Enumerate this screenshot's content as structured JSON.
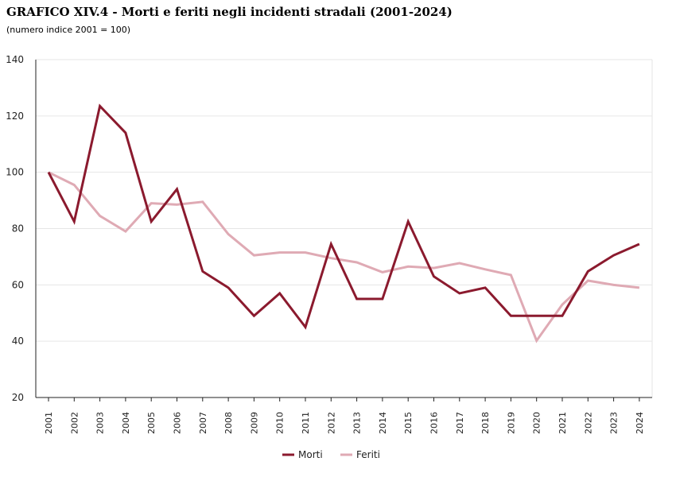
{
  "chart_data": {
    "type": "line",
    "title": "GRAFICO XIV.4 - Morti e feriti negli incidenti stradali (2001-2024)",
    "subtitle": "(numero indice 2001 = 100)",
    "xlabel": "",
    "ylabel": "",
    "ylim": [
      20,
      140
    ],
    "yticks": [
      20,
      40,
      60,
      80,
      100,
      120,
      140
    ],
    "grid": true,
    "legend_position": "bottom-center",
    "categories": [
      "2001",
      "2002",
      "2003",
      "2004",
      "2005",
      "2006",
      "2007",
      "2008",
      "2009",
      "2010",
      "2011",
      "2012",
      "2013",
      "2014",
      "2015",
      "2016",
      "2017",
      "2018",
      "2019",
      "2020",
      "2021",
      "2022",
      "2023",
      "2024"
    ],
    "series": [
      {
        "name": "Morti",
        "color": "#8b1a2e",
        "values": [
          100,
          82.5,
          123.5,
          114,
          82.5,
          94,
          64.8,
          59,
          49,
          57,
          45,
          74.5,
          55,
          55,
          82.5,
          63,
          57,
          59,
          49,
          49,
          49,
          64.8,
          70.5,
          74.5
        ]
      },
      {
        "name": "Feriti",
        "color": "#dfaab4",
        "values": [
          100,
          95.5,
          84.5,
          79,
          89,
          88.5,
          89.5,
          78,
          70.5,
          71.5,
          71.5,
          69.5,
          68,
          64.5,
          66.5,
          66,
          67.7,
          65.5,
          63.5,
          40.2,
          53,
          61.5,
          60,
          59
        ]
      }
    ]
  }
}
